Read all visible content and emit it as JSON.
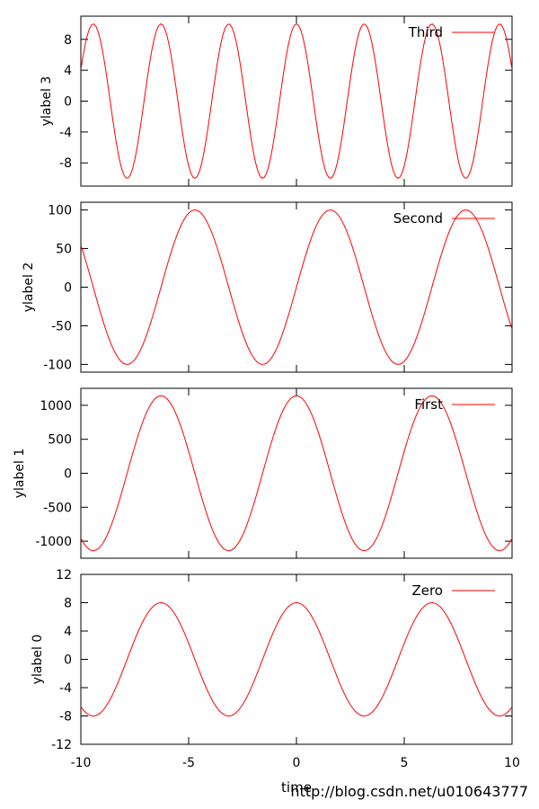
{
  "chart_data": [
    {
      "type": "line",
      "ylabel": "ylabel 3",
      "xlim": [
        -10,
        10
      ],
      "ylim": [
        -11,
        11
      ],
      "yticks": [
        8,
        4,
        0,
        -4,
        -8
      ],
      "ytick_labels": [
        "8",
        "4",
        "0",
        "-4",
        "-8"
      ],
      "series": [
        {
          "name": "Third",
          "color": "#ff0000",
          "function": "10*cos(2x)"
        }
      ]
    },
    {
      "type": "line",
      "ylabel": "ylabel 2",
      "xlim": [
        -10,
        10
      ],
      "ylim": [
        -110,
        110
      ],
      "yticks": [
        100,
        50,
        0,
        -50,
        -100
      ],
      "ytick_labels": [
        "100",
        "50",
        "0",
        "-50",
        "-100"
      ],
      "series": [
        {
          "name": "Second",
          "color": "#ff0000",
          "function": "100*sin(x)"
        }
      ]
    },
    {
      "type": "line",
      "ylabel": "ylabel 1",
      "xlim": [
        -10,
        10
      ],
      "ylim": [
        -1250,
        1250
      ],
      "yticks": [
        1000,
        500,
        0,
        -500,
        -1000
      ],
      "ytick_labels": [
        "1000",
        "500",
        "0",
        "-500",
        "-1000"
      ],
      "series": [
        {
          "name": "First",
          "color": "#ff0000",
          "function": "1140*cos(x)"
        }
      ]
    },
    {
      "type": "line",
      "ylabel": "ylabel 0",
      "xlabel": "time",
      "xlim": [
        -10,
        10
      ],
      "ylim": [
        -12,
        12
      ],
      "xticks": [
        -10,
        -5,
        0,
        5,
        10
      ],
      "xtick_labels": [
        "-10",
        "-5",
        "0",
        "5",
        "10"
      ],
      "yticks": [
        12,
        8,
        4,
        0,
        -4,
        -8,
        -12
      ],
      "ytick_labels": [
        "12",
        "8",
        "4",
        "0",
        "-4",
        "-8",
        "-12"
      ],
      "series": [
        {
          "name": "Zero",
          "color": "#ff0000",
          "function": "8*cos(x)"
        }
      ]
    }
  ],
  "watermark": "http://blog.csdn.net/u010643777"
}
